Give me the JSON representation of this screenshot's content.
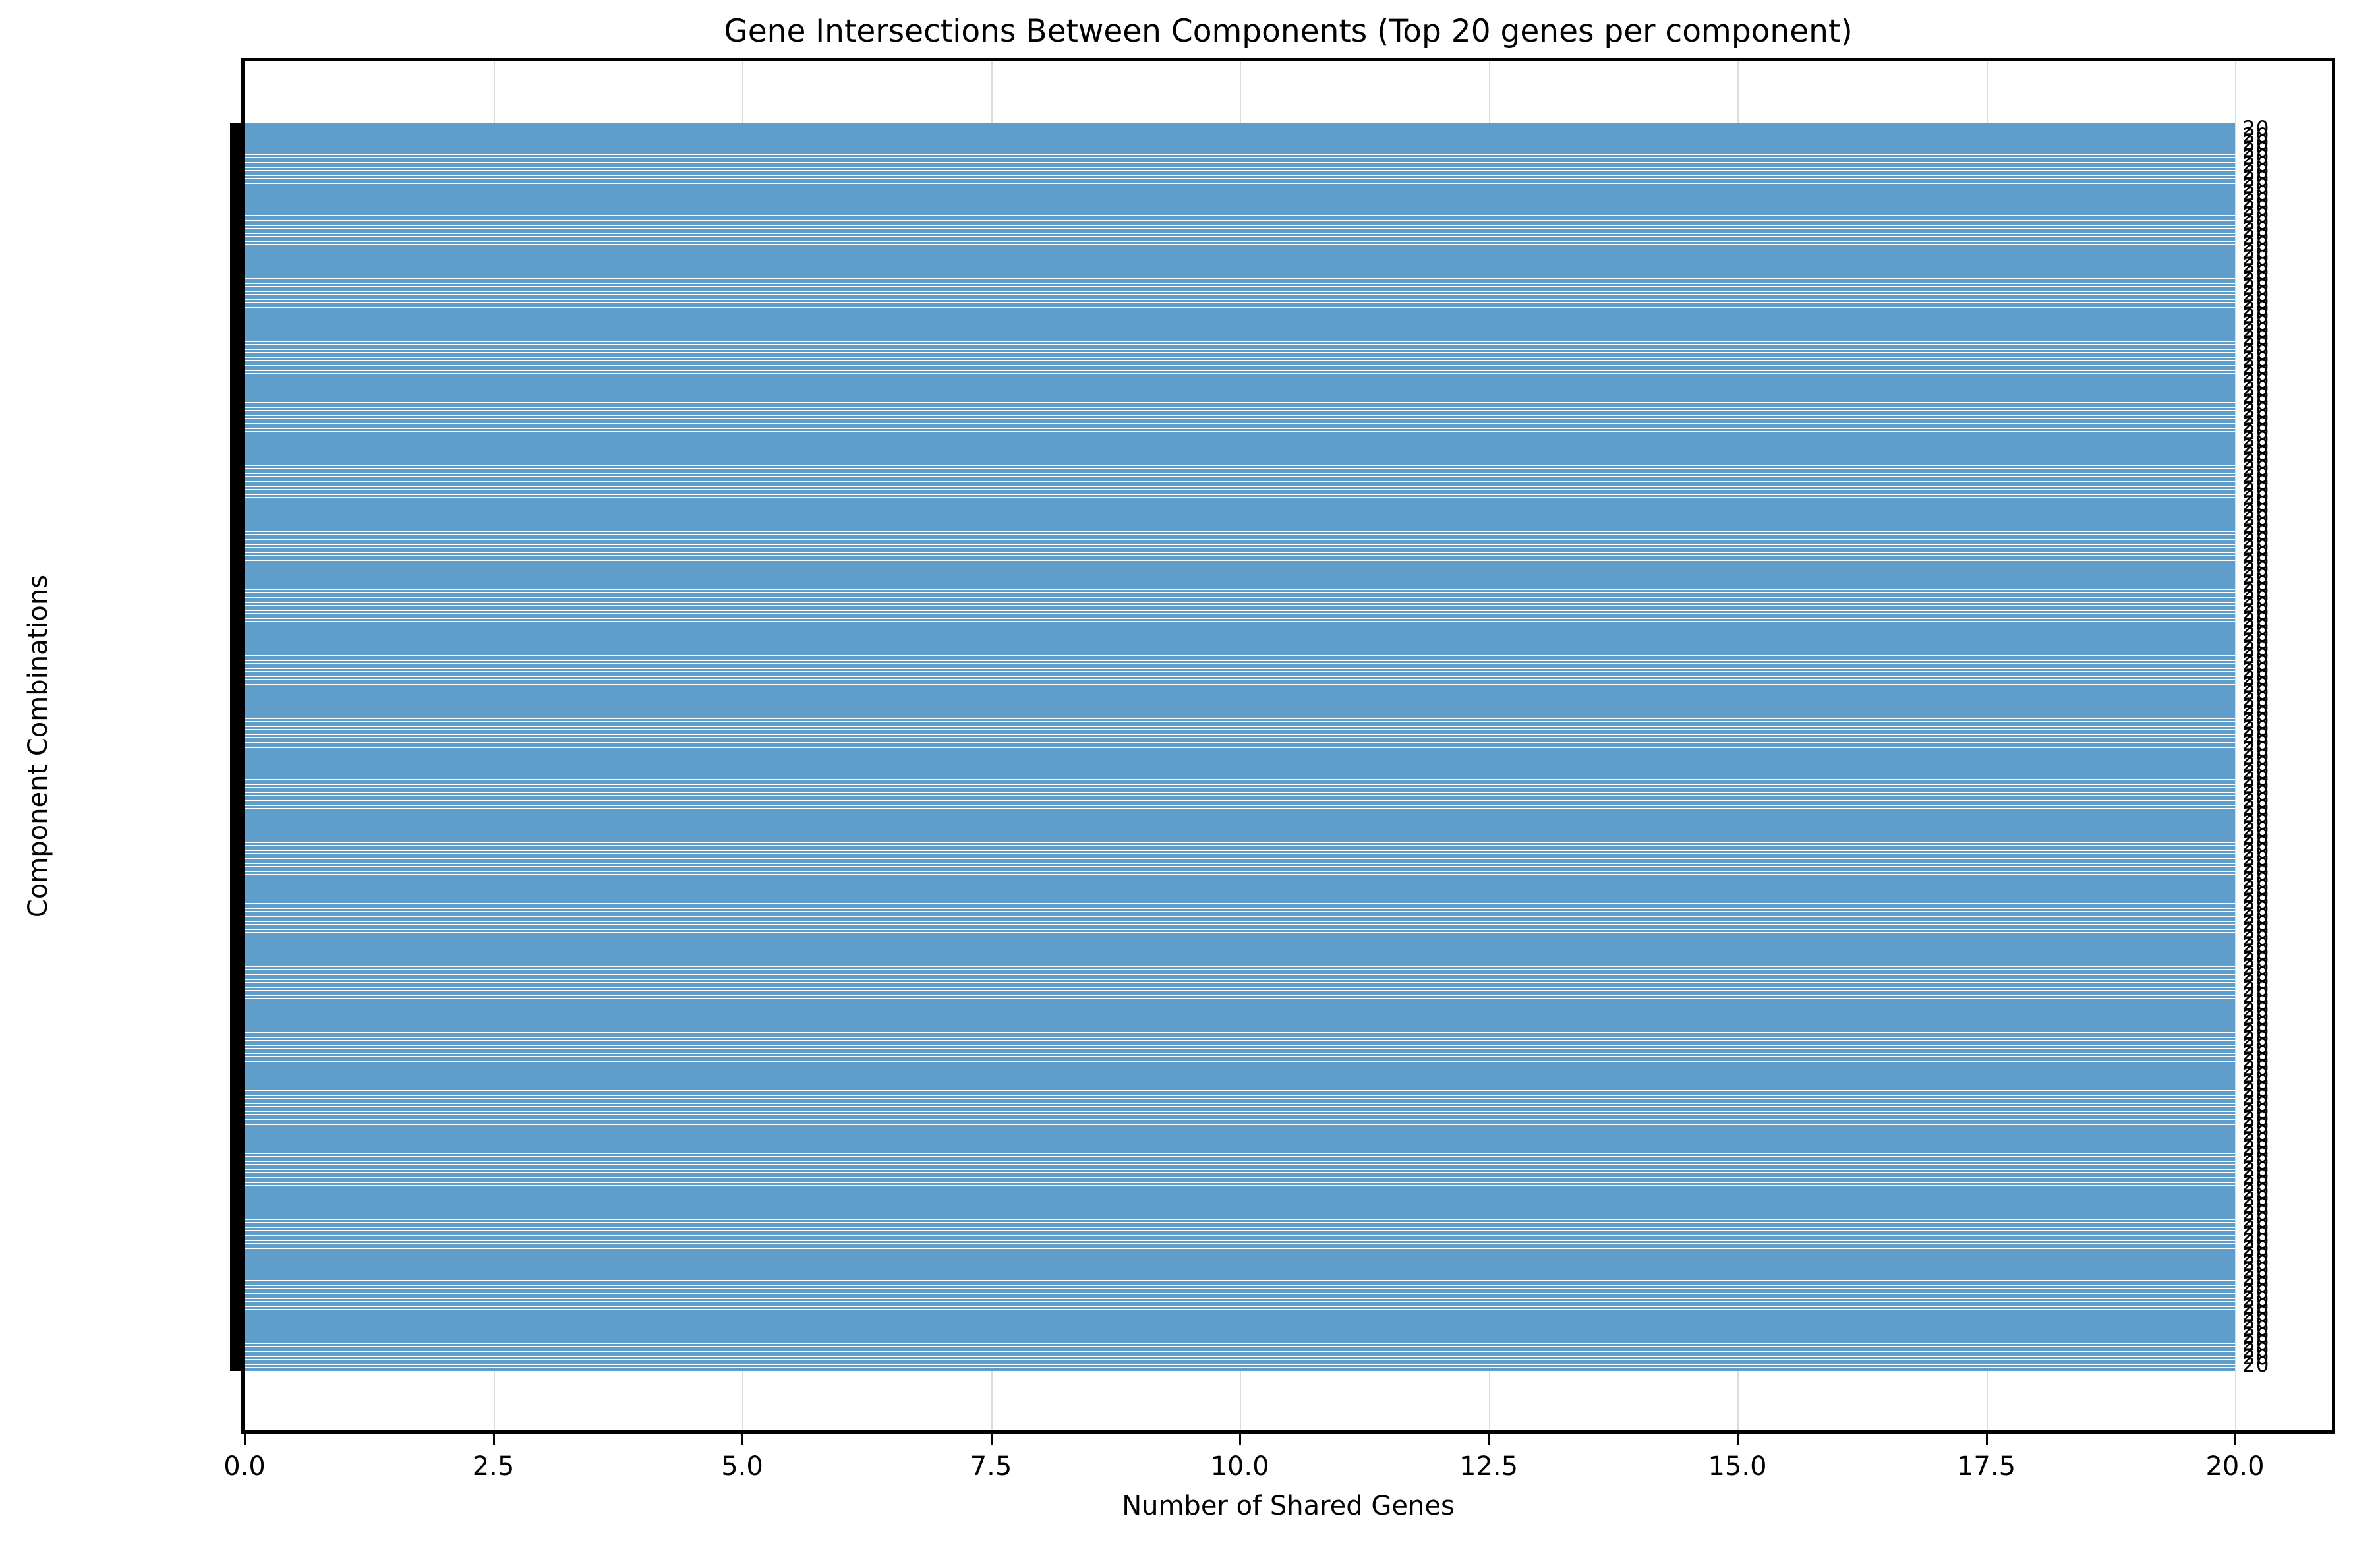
{
  "chart_data": {
    "type": "bar",
    "orientation": "horizontal",
    "title": "Gene Intersections Between Components (Top 20 genes per component)",
    "xlabel": "Number of Shared Genes",
    "ylabel": "Component Combinations",
    "x_tick_labels": [
      "0.0",
      "2.5",
      "5.0",
      "7.5",
      "10.0",
      "12.5",
      "15.0",
      "17.5",
      "20.0"
    ],
    "x_tick_values": [
      0,
      2.5,
      5,
      7.5,
      10,
      12.5,
      15,
      17.5,
      20
    ],
    "xlim": [
      0,
      21
    ],
    "grid": true,
    "background_color": "#ffffff",
    "bar_color": "#5f9dca",
    "text_color": "#000000",
    "gridline_color": "#dcdcdc",
    "n_bars_visible": 172,
    "value_per_bar": 20,
    "bar_value_label": "20",
    "y_tick_label_line1_format": "Component {n} ∩",
    "y_tick_label_line2_format": "Component {n}",
    "component_numbers_line1": [
      1,
      2,
      3,
      4,
      5,
      6,
      7,
      8,
      9
    ],
    "component_numbers_line2": [
      10,
      11,
      12,
      13,
      14,
      15,
      16,
      17,
      18,
      19
    ],
    "legible_top_label_line": "Component 1 ∩",
    "legible_bottom_label": "Component 18",
    "overlap_note": "Y-axis category labels and per-bar value annotations overlap into solid black columns; every visible bar extends to 20 shared genes."
  }
}
